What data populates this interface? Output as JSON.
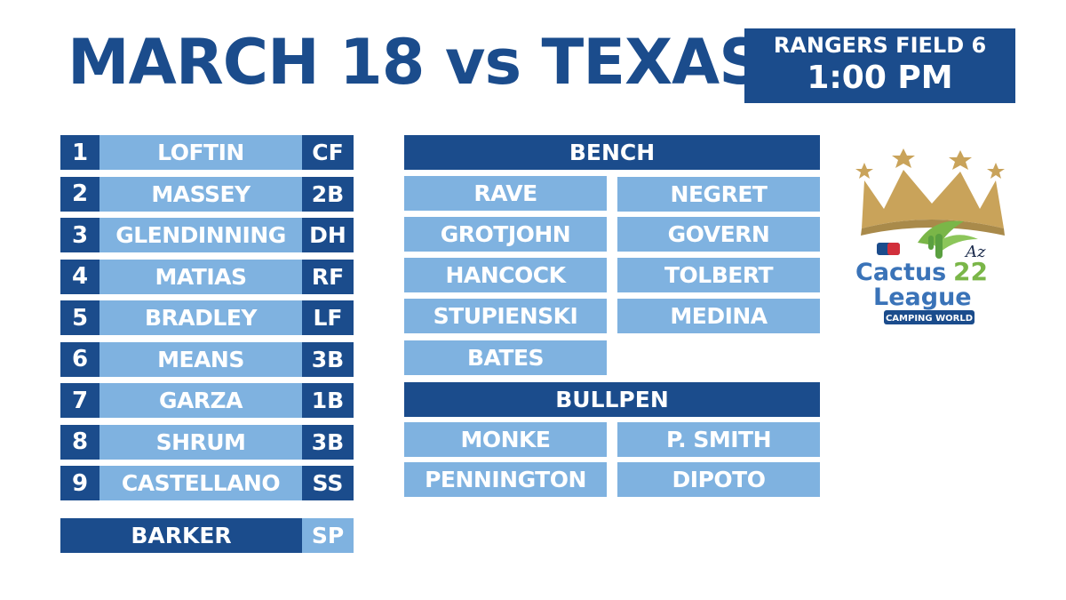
{
  "header": {
    "title": "MARCH 18 vs TEXAS",
    "venue": "RANGERS FIELD 6",
    "time": "1:00 PM"
  },
  "lineup": [
    {
      "num": "1",
      "name": "LOFTIN",
      "pos": "CF"
    },
    {
      "num": "2",
      "name": "MASSEY",
      "pos": "2B"
    },
    {
      "num": "3",
      "name": "GLENDINNING",
      "pos": "DH"
    },
    {
      "num": "4",
      "name": "MATIAS",
      "pos": "RF"
    },
    {
      "num": "5",
      "name": "BRADLEY",
      "pos": "LF"
    },
    {
      "num": "6",
      "name": "MEANS",
      "pos": "3B"
    },
    {
      "num": "7",
      "name": "GARZA",
      "pos": "1B"
    },
    {
      "num": "8",
      "name": "SHRUM",
      "pos": "3B"
    },
    {
      "num": "9",
      "name": "CASTELLANO",
      "pos": "SS"
    }
  ],
  "starting_pitcher": {
    "name": "BARKER",
    "pos": "SP"
  },
  "bench": {
    "label": "BENCH",
    "players": [
      "RAVE",
      "NEGRET",
      "GROTJOHN",
      "GOVERN",
      "HANCOCK",
      "TOLBERT",
      "STUPIENSKI",
      "MEDINA",
      "BATES"
    ]
  },
  "bullpen": {
    "label": "BULLPEN",
    "players": [
      "MONKE",
      "P. SMITH",
      "PENNINGTON",
      "DIPOTO"
    ]
  },
  "logo": {
    "az": "Az",
    "cactus": "Cactus",
    "year": "22",
    "league": "League",
    "sponsor": "CAMPING WORLD"
  },
  "colors": {
    "dark": "#1b4c8c",
    "light": "#7fb2e0",
    "gold": "#c9a35a",
    "green": "#7ab648"
  }
}
